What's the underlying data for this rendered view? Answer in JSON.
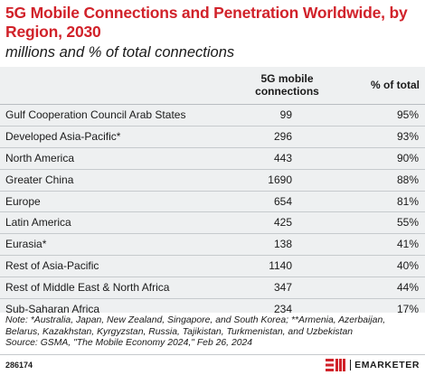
{
  "chart_data": {
    "type": "table",
    "title": "5G Mobile Connections and Penetration Worldwide, by Region, 2030",
    "subtitle": "millions and % of total connections",
    "columns": [
      "5G mobile connections",
      "% of total"
    ],
    "rows": [
      {
        "region": "Gulf Cooperation Council Arab States",
        "connections": "99",
        "pct": "95%"
      },
      {
        "region": "Developed Asia-Pacific*",
        "connections": "296",
        "pct": "93%"
      },
      {
        "region": "North America",
        "connections": "443",
        "pct": "90%"
      },
      {
        "region": "Greater China",
        "connections": "1690",
        "pct": "88%"
      },
      {
        "region": "Europe",
        "connections": "654",
        "pct": "81%"
      },
      {
        "region": "Latin America",
        "connections": "425",
        "pct": "55%"
      },
      {
        "region": "Eurasia*",
        "connections": "138",
        "pct": "41%"
      },
      {
        "region": "Rest of Asia-Pacific",
        "connections": "1140",
        "pct": "40%"
      },
      {
        "region": "Rest of Middle East & North Africa",
        "connections": "347",
        "pct": "44%"
      },
      {
        "region": "Sub-Saharan Africa",
        "connections": "234",
        "pct": "17%"
      }
    ],
    "note": "Note: *Australia, Japan, New Zealand, Singapore, and South Korea; **Armenia, Azerbaijan, Belarus, Kazakhstan, Kyrgyzstan, Russia, Tajikistan, Turkmenistan, and Uzbekistan",
    "source": "Source: GSMA, \"The Mobile Economy 2024,\" Feb 26, 2024"
  },
  "footer": {
    "chart_id": "286174",
    "brand": "EMARKETER"
  },
  "colors": {
    "title": "#d1222a",
    "table_background": "#eef0f1",
    "logo": "#d1222a"
  }
}
